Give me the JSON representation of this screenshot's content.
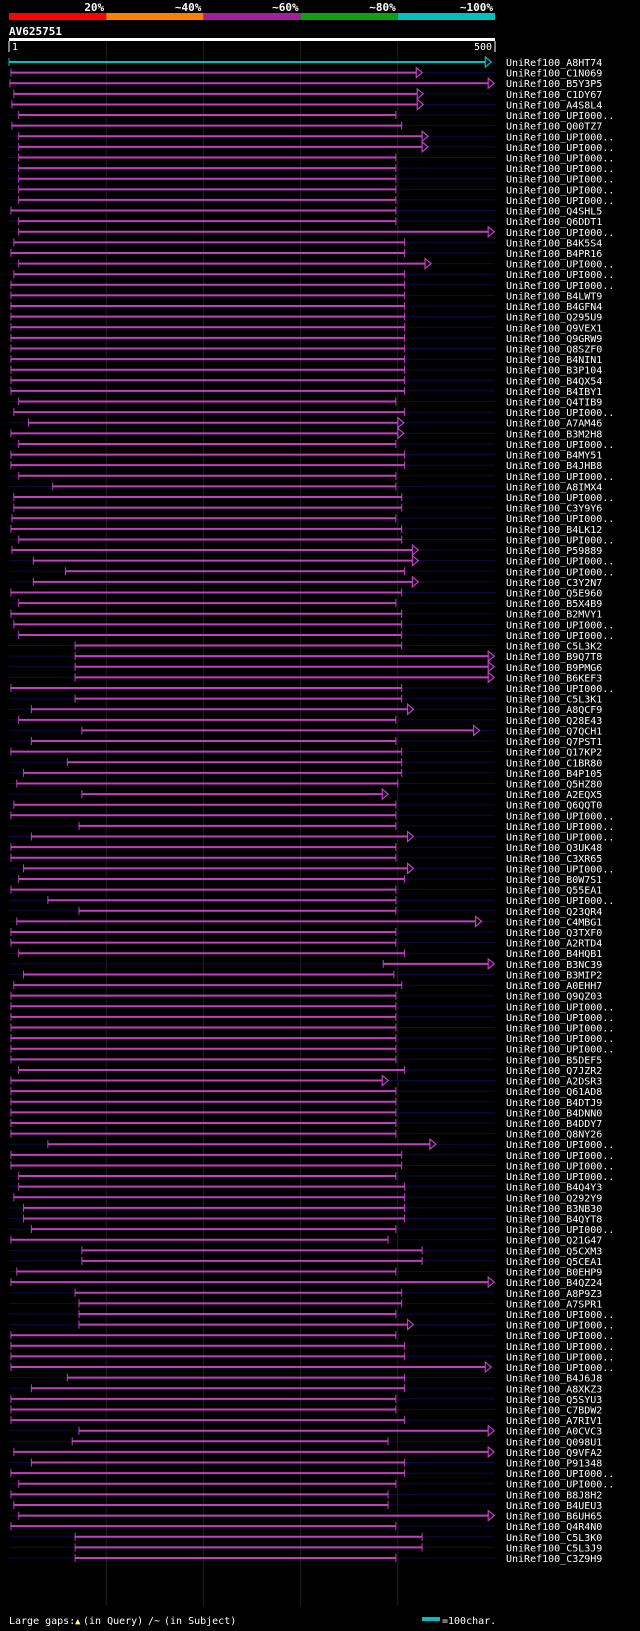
{
  "chart_data": {
    "type": "alignment_overview",
    "query_name": "AV625751",
    "query_start": 1,
    "query_end_label": 500,
    "scale_labels": [
      "20%",
      "~40%",
      "~60%",
      "~80%",
      "~100%"
    ],
    "scale_colors": [
      "#ff0000",
      "#ff8000",
      "#a020a0",
      "#10a010",
      "#00c0c0"
    ],
    "query_bar_color": "#00c0c0",
    "hit_color": "#c040c0",
    "gap_marker_color": "#ffff80",
    "legend": {
      "large_gaps": "Large gaps:",
      "in_query": "(in Query)",
      "in_subject": "(in Subject)",
      "scale": "=100char."
    },
    "hits": [
      {
        "name": "UniRef100_A8HT74",
        "start": 0,
        "end": 490,
        "color": "#00c0c0",
        "arrow": true
      },
      {
        "name": "UniRef100_C1N069",
        "start": 2,
        "end": 419,
        "arrow": true
      },
      {
        "name": "UniRef100_B5Y3P5",
        "start": 1,
        "end": 493,
        "arrow": true
      },
      {
        "name": "UniRef100_C1DY67",
        "start": 5,
        "end": 420,
        "arrow": true
      },
      {
        "name": "UniRef100_A4S8L4",
        "start": 3,
        "end": 420,
        "arrow": true
      },
      {
        "name": "UniRef100_UPI000..",
        "start": 10,
        "end": 398
      },
      {
        "name": "UniRef100_Q00TZ7",
        "start": 3,
        "end": 404
      },
      {
        "name": "UniRef100_UPI000..",
        "start": 10,
        "end": 425,
        "arrow": true
      },
      {
        "name": "UniRef100_UPI000..",
        "start": 10,
        "end": 425,
        "arrow": true
      },
      {
        "name": "UniRef100_UPI000..",
        "start": 10,
        "end": 398
      },
      {
        "name": "UniRef100_UPI000..",
        "start": 10,
        "end": 398
      },
      {
        "name": "UniRef100_UPI000..",
        "start": 10,
        "end": 398
      },
      {
        "name": "UniRef100_UPI000..",
        "start": 10,
        "end": 398
      },
      {
        "name": "UniRef100_UPI000..",
        "start": 10,
        "end": 398
      },
      {
        "name": "UniRef100_Q4SHL5",
        "start": 2,
        "end": 398
      },
      {
        "name": "UniRef100_Q6DDT1",
        "start": 10,
        "end": 398
      },
      {
        "name": "UniRef100_UPI000..",
        "start": 10,
        "end": 493,
        "arrow": true
      },
      {
        "name": "UniRef100_B4K5S4",
        "start": 5,
        "end": 407
      },
      {
        "name": "UniRef100_B4PR16",
        "start": 2,
        "end": 407
      },
      {
        "name": "UniRef100_UPI000..",
        "start": 10,
        "end": 428,
        "arrow": true
      },
      {
        "name": "UniRef100_UPI000..",
        "start": 5,
        "end": 407
      },
      {
        "name": "UniRef100_UPI000..",
        "start": 2,
        "end": 407
      },
      {
        "name": "UniRef100_B4LWT9",
        "start": 2,
        "end": 407
      },
      {
        "name": "UniRef100_B4GFN4",
        "start": 2,
        "end": 407
      },
      {
        "name": "UniRef100_Q295U9",
        "start": 2,
        "end": 407
      },
      {
        "name": "UniRef100_Q9VEX1",
        "start": 2,
        "end": 407
      },
      {
        "name": "UniRef100_Q9GRW9",
        "start": 2,
        "end": 407
      },
      {
        "name": "UniRef100_Q8SZF0",
        "start": 2,
        "end": 407
      },
      {
        "name": "UniRef100_B4NIN1",
        "start": 2,
        "end": 407
      },
      {
        "name": "UniRef100_B3P104",
        "start": 2,
        "end": 407
      },
      {
        "name": "UniRef100_B4QX54",
        "start": 2,
        "end": 407
      },
      {
        "name": "UniRef100_B4IBY1",
        "start": 2,
        "end": 407
      },
      {
        "name": "UniRef100_Q4TIB9",
        "start": 10,
        "end": 398
      },
      {
        "name": "UniRef100_UPI000..",
        "start": 5,
        "end": 407
      },
      {
        "name": "UniRef100_A7AM46",
        "start": 20,
        "end": 400,
        "arrow": true
      },
      {
        "name": "UniRef100_B3M2H8",
        "start": 2,
        "end": 400,
        "arrow": true
      },
      {
        "name": "UniRef100_UPI000..",
        "start": 10,
        "end": 398
      },
      {
        "name": "UniRef100_B4MY51",
        "start": 2,
        "end": 407
      },
      {
        "name": "UniRef100_B4JHB8",
        "start": 2,
        "end": 407
      },
      {
        "name": "UniRef100_UPI000..",
        "start": 10,
        "end": 398
      },
      {
        "name": "UniRef100_A8IMX4",
        "start": 45,
        "end": 398
      },
      {
        "name": "UniRef100_UPI000..",
        "start": 5,
        "end": 404
      },
      {
        "name": "UniRef100_C3Y9Y6",
        "start": 5,
        "end": 404
      },
      {
        "name": "UniRef100_UPI000..",
        "start": 3,
        "end": 398
      },
      {
        "name": "UniRef100_B4LK12",
        "start": 2,
        "end": 404
      },
      {
        "name": "UniRef100_UPI000..",
        "start": 10,
        "end": 404
      },
      {
        "name": "UniRef100_P59889",
        "start": 3,
        "end": 415,
        "arrow": true
      },
      {
        "name": "UniRef100_UPI000..",
        "start": 25,
        "end": 415,
        "arrow": true
      },
      {
        "name": "UniRef100_UPI000..",
        "start": 58,
        "end": 407
      },
      {
        "name": "UniRef100_C3Y2N7",
        "start": 25,
        "end": 415,
        "arrow": true
      },
      {
        "name": "UniRef100_Q5E960",
        "start": 2,
        "end": 404
      },
      {
        "name": "UniRef100_B5X4B9",
        "start": 10,
        "end": 398
      },
      {
        "name": "UniRef100_B2MVY1",
        "start": 2,
        "end": 404
      },
      {
        "name": "UniRef100_UPI000..",
        "start": 5,
        "end": 404
      },
      {
        "name": "UniRef100_UPI000..",
        "start": 10,
        "end": 404
      },
      {
        "name": "UniRef100_C5L3K2",
        "start": 68,
        "end": 404
      },
      {
        "name": "UniRef100_B9Q7T8",
        "start": 68,
        "end": 493,
        "arrow": true
      },
      {
        "name": "UniRef100_B9PMG6",
        "start": 68,
        "end": 493,
        "arrow": true
      },
      {
        "name": "UniRef100_B6KEF3",
        "start": 68,
        "end": 493,
        "arrow": true
      },
      {
        "name": "UniRef100_UPI000..",
        "start": 2,
        "end": 404
      },
      {
        "name": "UniRef100_C5L3K1",
        "start": 68,
        "end": 404
      },
      {
        "name": "UniRef100_A8QCF9",
        "start": 23,
        "end": 410,
        "arrow": true
      },
      {
        "name": "UniRef100_Q28E43",
        "start": 10,
        "end": 398
      },
      {
        "name": "UniRef100_Q7QCH1",
        "start": 75,
        "end": 478,
        "arrow": true
      },
      {
        "name": "UniRef100_Q7PST1",
        "start": 23,
        "end": 398
      },
      {
        "name": "UniRef100_Q17KP2",
        "start": 2,
        "end": 404
      },
      {
        "name": "UniRef100_C1BR80",
        "start": 60,
        "end": 404
      },
      {
        "name": "UniRef100_B4P105",
        "start": 15,
        "end": 404
      },
      {
        "name": "UniRef100_Q5HZ80",
        "start": 8,
        "end": 400
      },
      {
        "name": "UniRef100_A2EQX5",
        "start": 75,
        "end": 384,
        "arrow": true
      },
      {
        "name": "UniRef100_Q6QQT0",
        "start": 5,
        "end": 398
      },
      {
        "name": "UniRef100_UPI000..",
        "start": 2,
        "end": 398
      },
      {
        "name": "UniRef100_UPI000..",
        "start": 72,
        "end": 398
      },
      {
        "name": "UniRef100_UPI000..",
        "start": 23,
        "end": 410,
        "arrow": true
      },
      {
        "name": "UniRef100_Q3UK48",
        "start": 2,
        "end": 398
      },
      {
        "name": "UniRef100_C3XR65",
        "start": 2,
        "end": 398
      },
      {
        "name": "UniRef100_UPI000..",
        "start": 15,
        "end": 410,
        "arrow": true
      },
      {
        "name": "UniRef100_B0W7S1",
        "start": 10,
        "end": 407
      },
      {
        "name": "UniRef100_Q55EA1",
        "start": 2,
        "end": 398
      },
      {
        "name": "UniRef100_UPI000..",
        "start": 40,
        "end": 398
      },
      {
        "name": "UniRef100_Q23QR4",
        "start": 72,
        "end": 398
      },
      {
        "name": "UniRef100_C4MBG1",
        "start": 8,
        "end": 480,
        "arrow": true
      },
      {
        "name": "UniRef100_Q3TXF0",
        "start": 2,
        "end": 398
      },
      {
        "name": "UniRef100_A2RTD4",
        "start": 2,
        "end": 398
      },
      {
        "name": "UniRef100_B4HQB1",
        "start": 10,
        "end": 407
      },
      {
        "name": "UniRef100_B3NC39",
        "start": 385,
        "end": 493,
        "arrow": true
      },
      {
        "name": "UniRef100_B3MIP2",
        "start": 15,
        "end": 396
      },
      {
        "name": "UniRef100_A0EHH7",
        "start": 5,
        "end": 404
      },
      {
        "name": "UniRef100_Q9QZ03",
        "start": 2,
        "end": 398
      },
      {
        "name": "UniRef100_UPI000..",
        "start": 2,
        "end": 398
      },
      {
        "name": "UniRef100_UPI000..",
        "start": 2,
        "end": 398
      },
      {
        "name": "UniRef100_UPI000..",
        "start": 2,
        "end": 398
      },
      {
        "name": "UniRef100_UPI000..",
        "start": 2,
        "end": 398
      },
      {
        "name": "UniRef100_UPI000..",
        "start": 2,
        "end": 398
      },
      {
        "name": "UniRef100_B5DEF5",
        "start": 2,
        "end": 398
      },
      {
        "name": "UniRef100_Q7JZR2",
        "start": 10,
        "end": 407
      },
      {
        "name": "UniRef100_A2DSR3",
        "start": 2,
        "end": 384,
        "arrow": true
      },
      {
        "name": "UniRef100_Q61AD8",
        "start": 2,
        "end": 398
      },
      {
        "name": "UniRef100_B4DTJ9",
        "start": 2,
        "end": 398
      },
      {
        "name": "UniRef100_B4DNN0",
        "start": 2,
        "end": 398
      },
      {
        "name": "UniRef100_B4DDY7",
        "start": 2,
        "end": 398
      },
      {
        "name": "UniRef100_Q8NY26",
        "start": 2,
        "end": 398
      },
      {
        "name": "UniRef100_UPI000..",
        "start": 40,
        "end": 433,
        "arrow": true
      },
      {
        "name": "UniRef100_UPI000..",
        "start": 2,
        "end": 404
      },
      {
        "name": "UniRef100_UPI000..",
        "start": 2,
        "end": 404
      },
      {
        "name": "UniRef100_UPI000..",
        "start": 10,
        "end": 398
      },
      {
        "name": "UniRef100_B4Q4Y3",
        "start": 10,
        "end": 407
      },
      {
        "name": "UniRef100_Q292Y9",
        "start": 5,
        "end": 407
      },
      {
        "name": "UniRef100_B3NB30",
        "start": 15,
        "end": 407
      },
      {
        "name": "UniRef100_B4QYT8",
        "start": 15,
        "end": 407
      },
      {
        "name": "UniRef100_UPI000..",
        "start": 23,
        "end": 398
      },
      {
        "name": "UniRef100_Q21G47",
        "start": 2,
        "end": 390
      },
      {
        "name": "UniRef100_Q5CXM3",
        "start": 75,
        "end": 425
      },
      {
        "name": "UniRef100_Q5CEA1",
        "start": 75,
        "end": 425
      },
      {
        "name": "UniRef100_B0EHP9",
        "start": 8,
        "end": 398
      },
      {
        "name": "UniRef100_B4QZ24",
        "start": 2,
        "end": 493,
        "arrow": true
      },
      {
        "name": "UniRef100_A8P9Z3",
        "start": 68,
        "end": 404
      },
      {
        "name": "UniRef100_A7SPR1",
        "start": 72,
        "end": 404
      },
      {
        "name": "UniRef100_UPI000..",
        "start": 72,
        "end": 398
      },
      {
        "name": "UniRef100_UPI000..",
        "start": 72,
        "end": 410,
        "arrow": true
      },
      {
        "name": "UniRef100_UPI000..",
        "start": 2,
        "end": 398
      },
      {
        "name": "UniRef100_UPI000..",
        "start": 2,
        "end": 407
      },
      {
        "name": "UniRef100_UPI000..",
        "start": 2,
        "end": 407
      },
      {
        "name": "UniRef100_UPI000..",
        "start": 2,
        "end": 490,
        "arrow": true
      },
      {
        "name": "UniRef100_B4J6J8",
        "start": 60,
        "end": 407
      },
      {
        "name": "UniRef100_A8XKZ3",
        "start": 23,
        "end": 407
      },
      {
        "name": "UniRef100_Q5SYU3",
        "start": 2,
        "end": 398
      },
      {
        "name": "UniRef100_C7BDW2",
        "start": 2,
        "end": 398
      },
      {
        "name": "UniRef100_A7RIV1",
        "start": 2,
        "end": 407
      },
      {
        "name": "UniRef100_A0CVC3",
        "start": 72,
        "end": 493,
        "arrow": true
      },
      {
        "name": "UniRef100_Q098U1",
        "start": 65,
        "end": 390
      },
      {
        "name": "UniRef100_Q9VFA2",
        "start": 5,
        "end": 493,
        "arrow": true
      },
      {
        "name": "UniRef100_P91348",
        "start": 23,
        "end": 407
      },
      {
        "name": "UniRef100_UPI000..",
        "start": 2,
        "end": 407
      },
      {
        "name": "UniRef100_UPI000..",
        "start": 10,
        "end": 398
      },
      {
        "name": "UniRef100_B8J8H2",
        "start": 2,
        "end": 390
      },
      {
        "name": "UniRef100_B4UEU3",
        "start": 5,
        "end": 390
      },
      {
        "name": "UniRef100_B6UH65",
        "start": 10,
        "end": 493,
        "arrow": true
      },
      {
        "name": "UniRef100_Q4R4N0",
        "start": 2,
        "end": 398
      },
      {
        "name": "UniRef100_C5L3K0",
        "start": 68,
        "end": 425
      },
      {
        "name": "UniRef100_C5L3J9",
        "start": 68,
        "end": 425
      },
      {
        "name": "UniRef100_C3Z9H9",
        "start": 68,
        "end": 398
      }
    ]
  }
}
